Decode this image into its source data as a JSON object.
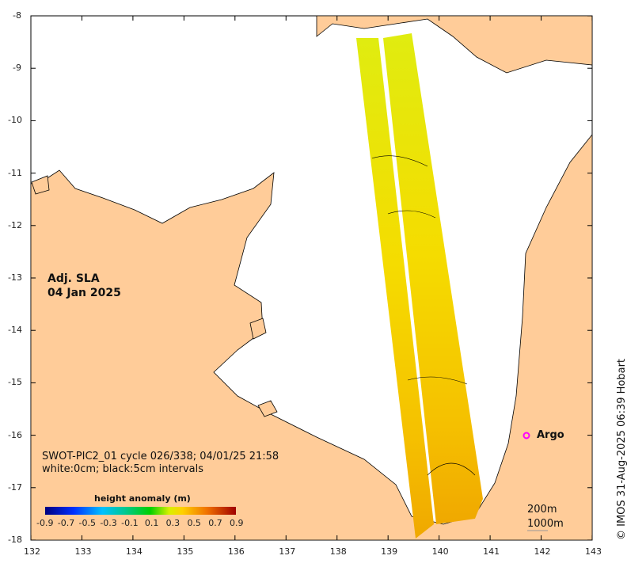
{
  "map": {
    "title_line1": "Adj. SLA",
    "title_line2": "04 Jan 2025",
    "info_line1": "SWOT-PIC2_01 cycle 026/338; 04/01/25 21:58",
    "info_line2": "white:0cm; black:5cm intervals",
    "x_ticks": [
      "132",
      "133",
      "134",
      "135",
      "136",
      "137",
      "138",
      "139",
      "140",
      "141",
      "142",
      "143"
    ],
    "y_ticks": [
      "-8",
      "-9",
      "-10",
      "-11",
      "-12",
      "-13",
      "-14",
      "-15",
      "-16",
      "-17",
      "-18"
    ],
    "argo_label": "Argo",
    "contour_200": "200m",
    "contour_1000": "1000m",
    "credit": "© IMOS 31-Aug-2025 06:39 Hobart",
    "colors": {
      "land": "#ffcc99",
      "ocean": "#ffffff",
      "argo": "#ff00ff"
    }
  },
  "colorbar": {
    "title": "height anomaly (m)",
    "labels": [
      "-0.9",
      "-0.7",
      "-0.5",
      "-0.3",
      "-0.1",
      "0.1",
      "0.3",
      "0.5",
      "0.7",
      "0.9"
    ],
    "range": [
      -0.9,
      0.9
    ]
  }
}
